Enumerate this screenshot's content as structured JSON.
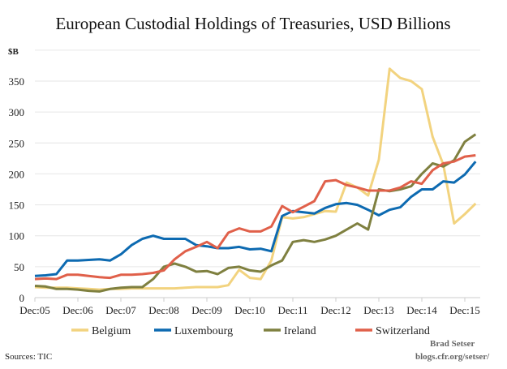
{
  "chart_data": {
    "type": "line",
    "title": "European Custodial Holdings of Treasuries, USD Billions",
    "ylabel": "$B",
    "ylim": [
      0,
      400
    ],
    "yticks": [
      0,
      50,
      100,
      150,
      200,
      250,
      300,
      350
    ],
    "xtick_labels": [
      "Dec:05",
      "Dec:06",
      "Dec:07",
      "Dec:08",
      "Dec:09",
      "Dec:10",
      "Dec:11",
      "Dec:12",
      "Dec:13",
      "Dec:14",
      "Dec:15"
    ],
    "grid": true,
    "legend_placement": "bottom",
    "x": [
      "Dec-05",
      "Mar-06",
      "Jun-06",
      "Sep-06",
      "Dec-06",
      "Mar-07",
      "Jun-07",
      "Sep-07",
      "Dec-07",
      "Mar-08",
      "Jun-08",
      "Sep-08",
      "Dec-08",
      "Mar-09",
      "Jun-09",
      "Sep-09",
      "Dec-09",
      "Mar-10",
      "Jun-10",
      "Sep-10",
      "Dec-10",
      "Mar-11",
      "Jun-11",
      "Sep-11",
      "Dec-11",
      "Mar-12",
      "Jun-12",
      "Sep-12",
      "Dec-12",
      "Mar-13",
      "Jun-13",
      "Sep-13",
      "Dec-13",
      "Mar-14",
      "Jun-14",
      "Sep-14",
      "Dec-14",
      "Mar-15",
      "Jun-15",
      "Sep-15",
      "Dec-15",
      "Mar-16"
    ],
    "series": [
      {
        "name": "Belgium",
        "color": "#F2D37F",
        "values": [
          17,
          16,
          16,
          16,
          15,
          14,
          13,
          14,
          14,
          15,
          15,
          15,
          15,
          15,
          16,
          17,
          17,
          17,
          20,
          45,
          32,
          30,
          60,
          130,
          128,
          130,
          135,
          140,
          139,
          186,
          178,
          165,
          223,
          370,
          355,
          350,
          337,
          260,
          215,
          120,
          135,
          152
        ]
      },
      {
        "name": "Luxembourg",
        "color": "#0D6AB1",
        "values": [
          35,
          36,
          38,
          60,
          60,
          61,
          62,
          60,
          70,
          85,
          95,
          100,
          95,
          95,
          95,
          85,
          83,
          80,
          80,
          82,
          78,
          79,
          75,
          132,
          140,
          138,
          136,
          145,
          151,
          153,
          150,
          142,
          133,
          142,
          146,
          163,
          175,
          175,
          188,
          186,
          199,
          220
        ]
      },
      {
        "name": "Ireland",
        "color": "#7F8040",
        "values": [
          19,
          18,
          14,
          14,
          13,
          11,
          10,
          14,
          16,
          17,
          17,
          30,
          50,
          55,
          50,
          42,
          43,
          38,
          48,
          50,
          44,
          42,
          52,
          60,
          90,
          93,
          90,
          94,
          100,
          110,
          120,
          110,
          175,
          172,
          175,
          180,
          200,
          217,
          212,
          222,
          252,
          264
        ]
      },
      {
        "name": "Switzerland",
        "color": "#E0604A",
        "values": [
          30,
          31,
          30,
          37,
          37,
          35,
          33,
          32,
          37,
          37,
          38,
          40,
          44,
          62,
          75,
          82,
          90,
          80,
          105,
          112,
          107,
          107,
          115,
          148,
          138,
          147,
          156,
          188,
          190,
          182,
          178,
          173,
          173,
          173,
          178,
          188,
          184,
          206,
          217,
          220,
          228,
          230
        ]
      }
    ]
  },
  "footer": {
    "source": "Sources: TIC",
    "author": "Brad Setser",
    "site": "blogs.cfr.org/setser/"
  }
}
